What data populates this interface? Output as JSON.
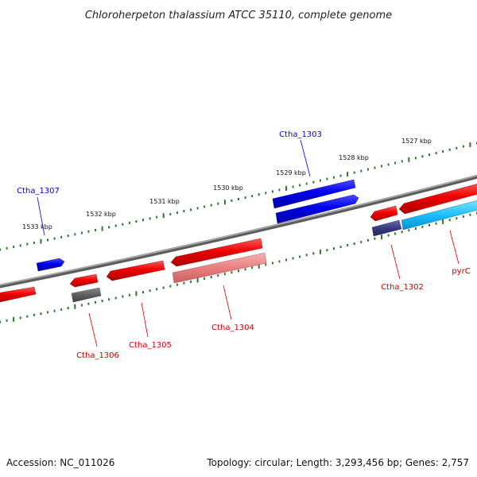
{
  "title": "Chloroherpeton thalassium ATCC 35110, complete genome",
  "accession": "Accession: NC_011026",
  "topology": "Topology: circular; Length: 3,293,456 bp; Genes: 2,757",
  "kbp_labels": [
    "1527 kbp",
    "1528 kbp",
    "1529 kbp",
    "1530 kbp",
    "1531 kbp",
    "1532 kbp",
    "1533 kbp"
  ],
  "genes": [
    {
      "name": "Ctha_1302",
      "strand": "reverse",
      "color": "#e00000"
    },
    {
      "name": "Ctha_1303",
      "strand": "forward",
      "color": "#0000dd"
    },
    {
      "name": "Ctha_1304",
      "strand": "reverse",
      "color": "#e00000"
    },
    {
      "name": "Ctha_1305",
      "strand": "reverse",
      "color": "#e00000"
    },
    {
      "name": "Ctha_1306",
      "strand": "reverse",
      "color": "#e00000"
    },
    {
      "name": "Ctha_1307",
      "strand": "forward",
      "color": "#0000dd"
    },
    {
      "name": "pyrC",
      "strand": "reverse",
      "color": "#e00000"
    }
  ],
  "colors": {
    "forward_label": "#0000cc",
    "reverse_label": "#cc0000",
    "backbone": "#888888",
    "tick": "#2a7a2a"
  }
}
